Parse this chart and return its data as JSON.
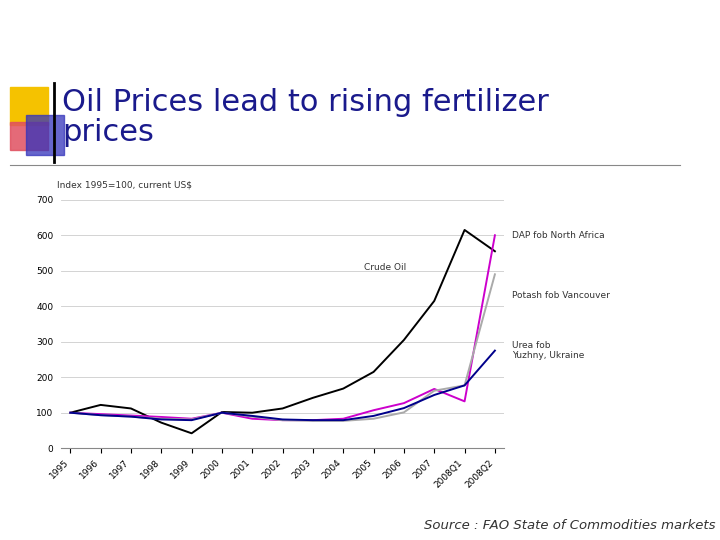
{
  "title_line1": "Oil Prices lead to rising fertilizer",
  "title_line2": "prices",
  "title_color": "#1a1a8c",
  "source_text": "Source : FAO State of Commodities markets",
  "ylabel": "Index 1995=100, current US$",
  "ylim": [
    0,
    700
  ],
  "yticks": [
    0,
    100,
    200,
    300,
    400,
    500,
    600,
    700
  ],
  "x_labels": [
    "1995",
    "1996",
    "1997",
    "1998",
    "1999",
    "2000",
    "2001",
    "2002",
    "2003",
    "2004",
    "2005",
    "2006",
    "2007",
    "2008Q1",
    "2008Q2"
  ],
  "crude_oil": [
    100,
    122,
    112,
    72,
    42,
    102,
    100,
    112,
    142,
    168,
    215,
    305,
    415,
    615,
    555
  ],
  "dap_north_africa": [
    100,
    96,
    92,
    88,
    83,
    100,
    83,
    79,
    79,
    83,
    107,
    127,
    167,
    132,
    600
  ],
  "potash_vancouver": [
    100,
    93,
    89,
    83,
    81,
    100,
    89,
    79,
    77,
    77,
    83,
    101,
    162,
    177,
    490
  ],
  "urea_ukraine": [
    100,
    93,
    89,
    81,
    79,
    100,
    91,
    81,
    79,
    79,
    91,
    113,
    150,
    177,
    275
  ],
  "crude_oil_color": "#000000",
  "dap_color": "#cc00cc",
  "potash_color": "#aaaaaa",
  "urea_color": "#00008b",
  "bg_color": "#ffffff",
  "grid_color": "#cccccc",
  "decor_yellow": "#f5c200",
  "decor_red": "#e05060",
  "decor_blue": "#3333bb"
}
